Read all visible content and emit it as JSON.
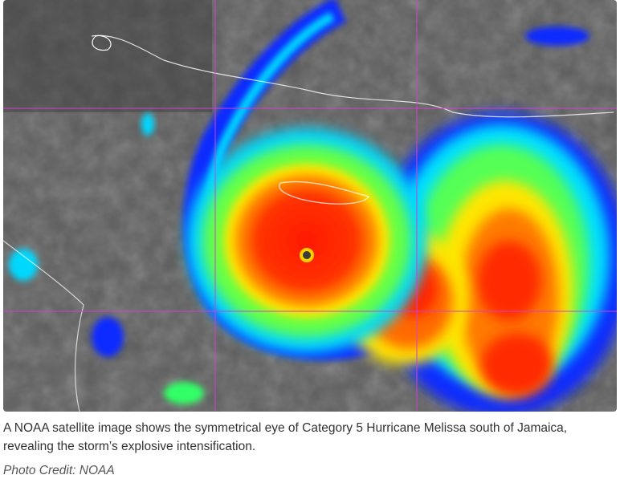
{
  "figure": {
    "caption": "A NOAA satellite image shows the symmetrical eye of Category 5 Hurricane Melissa south of Jamaica, revealing the storm’s explosive intensification.",
    "credit": "Photo Credit: NOAA"
  }
}
